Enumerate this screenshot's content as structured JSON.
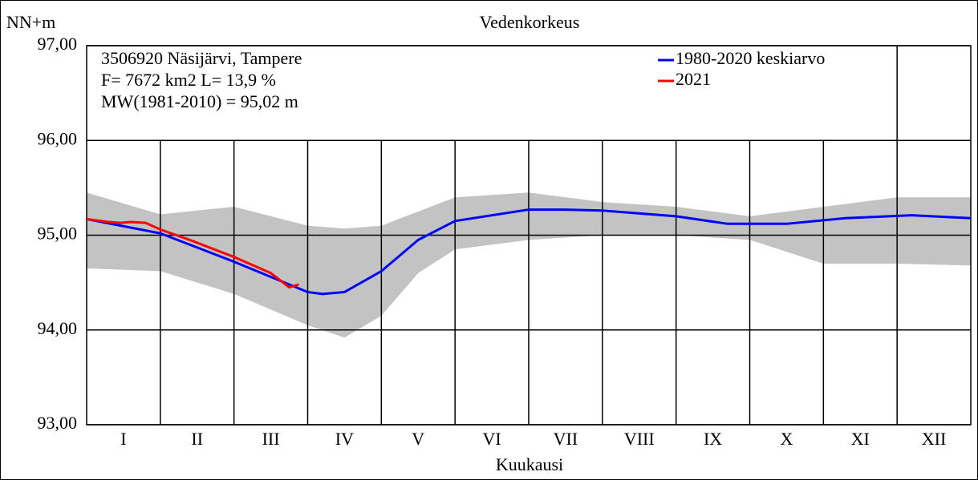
{
  "chart_data": {
    "type": "line",
    "title": "Vedenkorkeus",
    "y_label": "NN+m",
    "x_label": "Kuukausi",
    "info": [
      "3506920 Näsijärvi, Tampere",
      "F=   7672 km2 L=  13,9 %",
      "MW(1981-2010) = 95,02 m"
    ],
    "categories": [
      "I",
      "II",
      "III",
      "IV",
      "V",
      "VI",
      "VII",
      "VIII",
      "IX",
      "X",
      "XI",
      "XII"
    ],
    "xlim": [
      0,
      12
    ],
    "ylim": [
      93,
      97
    ],
    "yticks": [
      {
        "value": 93,
        "label": "93,00"
      },
      {
        "value": 94,
        "label": "94,00"
      },
      {
        "value": 95,
        "label": "95,00"
      },
      {
        "value": 96,
        "label": "96,00"
      },
      {
        "value": 97,
        "label": "97,00"
      }
    ],
    "grid": true,
    "band": {
      "color": "#c3c3c3",
      "x": [
        0,
        1,
        2,
        3,
        3.5,
        4,
        4.5,
        5,
        6,
        7,
        8,
        9,
        10,
        11,
        12
      ],
      "high": [
        95.45,
        95.22,
        95.3,
        95.1,
        95.07,
        95.1,
        95.25,
        95.4,
        95.45,
        95.35,
        95.3,
        95.2,
        95.3,
        95.4,
        95.4
      ],
      "low": [
        94.65,
        94.62,
        94.38,
        94.05,
        93.92,
        94.15,
        94.6,
        94.85,
        94.95,
        95.0,
        95.0,
        94.95,
        94.7,
        94.7,
        94.68
      ]
    },
    "series": [
      {
        "name": "1980-2020 keskiarvo",
        "color": "#0000ff",
        "x": [
          0,
          1,
          2,
          3,
          3.2,
          3.5,
          4,
          4.5,
          5,
          6,
          6.5,
          7,
          8,
          8.7,
          9.5,
          10.3,
          11.2,
          12
        ],
        "values": [
          95.17,
          95.02,
          94.72,
          94.4,
          94.38,
          94.4,
          94.62,
          94.95,
          95.15,
          95.27,
          95.27,
          95.26,
          95.2,
          95.12,
          95.12,
          95.18,
          95.21,
          95.18
        ]
      },
      {
        "name": "2021",
        "color": "#ff0000",
        "x": [
          0,
          0.3,
          0.46,
          0.6,
          0.8,
          1,
          1.4,
          2,
          2.5,
          2.75,
          2.88
        ],
        "values": [
          95.17,
          95.14,
          95.13,
          95.14,
          95.13,
          95.06,
          94.95,
          94.77,
          94.6,
          94.45,
          94.48
        ]
      }
    ]
  }
}
